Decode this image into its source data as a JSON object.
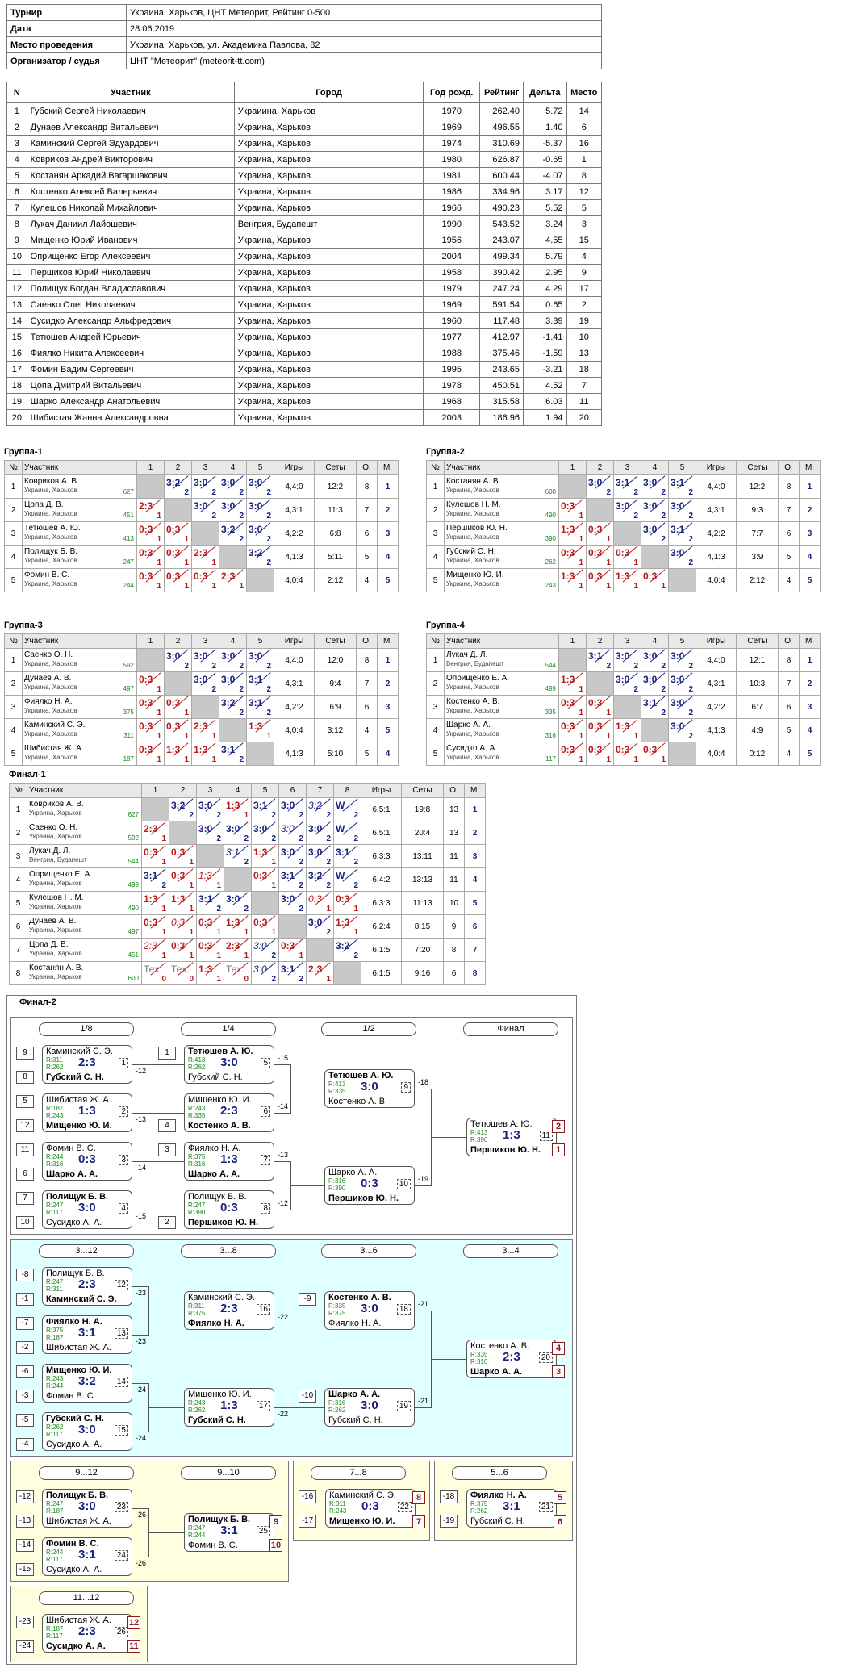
{
  "info": [
    [
      "Турнир",
      "Украина, Харьков, ЦНТ Метеорит, Рейтинг 0-500"
    ],
    [
      "Дата",
      "28.06.2019"
    ],
    [
      "Место проведения",
      "Украина, Харьков, ул. Академика Павлова, 82"
    ],
    [
      "Организатор / судья",
      "ЦНТ \"Метеорит\" (meteorit-tt.com)"
    ]
  ],
  "plist_headers": [
    "N",
    "Участник",
    "Город",
    "Год рожд.",
    "Рейтинг",
    "Дельта",
    "Место"
  ],
  "players": [
    [
      "1",
      "Губский Сергей Николаевич",
      "Украиина, Харьков",
      "1970",
      "262.40",
      "5.72",
      "14"
    ],
    [
      "2",
      "Дунаев Александр Витальевич",
      "Украина, Харьков",
      "1969",
      "496.55",
      "1.40",
      "6"
    ],
    [
      "3",
      "Каминский Сергей Эдуардович",
      "Украина, Харьков",
      "1974",
      "310.69",
      "-5.37",
      "16"
    ],
    [
      "4",
      "Ковриков Андрей Викторович",
      "Украина, Харьков",
      "1980",
      "626.87",
      "-0.65",
      "1"
    ],
    [
      "5",
      "Костанян Аркадий Вагаршакович",
      "Украина, Харьков",
      "1981",
      "600.44",
      "-4.07",
      "8"
    ],
    [
      "6",
      "Костенко Алексей Валерьевич",
      "Украина, Харьков",
      "1986",
      "334.96",
      "3.17",
      "12"
    ],
    [
      "7",
      "Кулешов Николай Михайлович",
      "Украина, Харьков",
      "1966",
      "490.23",
      "5.52",
      "5"
    ],
    [
      "8",
      "Лукач Даниил Лайошевич",
      "Венгрия, Будапешт",
      "1990",
      "543.52",
      "3.24",
      "3"
    ],
    [
      "9",
      "Мищенко Юрий Иванович",
      "Украина, Харьков",
      "1956",
      "243.07",
      "4.55",
      "15"
    ],
    [
      "10",
      "Оприщенко Егор Алексеевич",
      "Украина, Харьков",
      "2004",
      "499.34",
      "5.79",
      "4"
    ],
    [
      "11",
      "Першиков Юрий Николаевич",
      "Украина, Харьков",
      "1958",
      "390.42",
      "2.95",
      "9"
    ],
    [
      "12",
      "Полищук Богдан Владиславович",
      "Украина, Харьков",
      "1979",
      "247.24",
      "4.29",
      "17"
    ],
    [
      "13",
      "Саенко Олег Николаевич",
      "Украина, Харьков",
      "1969",
      "591.54",
      "0.65",
      "2"
    ],
    [
      "14",
      "Сусидко Александр Альфредович",
      "Украина, Харьков",
      "1960",
      "117.48",
      "3.39",
      "19"
    ],
    [
      "15",
      "Тетюшев Андрей Юрьевич",
      "Украина, Харьков",
      "1977",
      "412.97",
      "-1.41",
      "10"
    ],
    [
      "16",
      "Фиялко Никита Алексеевич",
      "Украина, Харьков",
      "1988",
      "375.46",
      "-1.59",
      "13"
    ],
    [
      "17",
      "Фомин Вадим Сергеевич",
      "Украина, Харьков",
      "1995",
      "243.65",
      "-3.21",
      "18"
    ],
    [
      "18",
      "Цопа Дмитрий Витальевич",
      "Украина, Харьков",
      "1978",
      "450.51",
      "4.52",
      "7"
    ],
    [
      "19",
      "Шарко Александр Анатольевич",
      "Украина, Харьков",
      "1968",
      "315.58",
      "6.03",
      "11"
    ],
    [
      "20",
      "Шибистая Жанна Александровна",
      "Украина, Харьков",
      "2003",
      "186.96",
      "1.94",
      "20"
    ]
  ],
  "group_headers": [
    "№",
    "Участник",
    "Игры",
    "Сеты",
    "О.",
    "М."
  ],
  "groups": [
    {
      "title": "Группа-1",
      "rows": [
        {
          "n": "1",
          "name": "Ковриков А. В.",
          "city": "Украина, Харьков",
          "r": "627",
          "cells": [
            "X",
            "3:2|2|w",
            "3:0|2|w",
            "3:0|2|w",
            "3:0|2|w"
          ],
          "g": "4,4:0",
          "s": "12:2",
          "o": "8",
          "m": "1"
        },
        {
          "n": "2",
          "name": "Цопа Д. В.",
          "city": "Украина, Харьков",
          "r": "451",
          "cells": [
            "2:3|1|l",
            "X",
            "3:0|2|w",
            "3:0|2|w",
            "3:0|2|w"
          ],
          "g": "4,3:1",
          "s": "11:3",
          "o": "7",
          "m": "2"
        },
        {
          "n": "3",
          "name": "Тетюшев А. Ю.",
          "city": "Украина, Харьков",
          "r": "413",
          "cells": [
            "0:3|1|l",
            "0:3|1|l",
            "X",
            "3:2|2|w",
            "3:0|2|w"
          ],
          "g": "4,2:2",
          "s": "6:8",
          "o": "6",
          "m": "3"
        },
        {
          "n": "4",
          "name": "Полищук Б. В.",
          "city": "Украина, Харьков",
          "r": "247",
          "cells": [
            "0:3|1|l",
            "0:3|1|l",
            "2:3|1|l",
            "X",
            "3:2|2|w"
          ],
          "g": "4,1:3",
          "s": "5:11",
          "o": "5",
          "m": "4"
        },
        {
          "n": "5",
          "name": "Фомин В. С.",
          "city": "Украина, Харьков",
          "r": "244",
          "cells": [
            "0:3|1|l",
            "0:3|1|l",
            "0:3|1|l",
            "2:3|1|l",
            "X"
          ],
          "g": "4,0:4",
          "s": "2:12",
          "o": "4",
          "m": "5"
        }
      ]
    },
    {
      "title": "Группа-2",
      "rows": [
        {
          "n": "1",
          "name": "Костанян А. В.",
          "city": "Украина, Харьков",
          "r": "600",
          "cells": [
            "X",
            "3:0|2|w",
            "3:1|2|w",
            "3:0|2|w",
            "3:1|2|w"
          ],
          "g": "4,4:0",
          "s": "12:2",
          "o": "8",
          "m": "1"
        },
        {
          "n": "2",
          "name": "Кулешов Н. М.",
          "city": "Украина, Харьков",
          "r": "490",
          "cells": [
            "0:3|1|l",
            "X",
            "3:0|2|w",
            "3:0|2|w",
            "3:0|2|w"
          ],
          "g": "4,3:1",
          "s": "9:3",
          "o": "7",
          "m": "2"
        },
        {
          "n": "3",
          "name": "Першиков Ю. Н.",
          "city": "Украина, Харьков",
          "r": "390",
          "cells": [
            "1:3|1|l",
            "0:3|1|l",
            "X",
            "3:0|2|w",
            "3:1|2|w"
          ],
          "g": "4,2:2",
          "s": "7:7",
          "o": "6",
          "m": "3"
        },
        {
          "n": "4",
          "name": "Губский С. Н.",
          "city": "Украина, Харьков",
          "r": "262",
          "cells": [
            "0:3|1|l",
            "0:3|1|l",
            "0:3|1|l",
            "X",
            "3:0|2|w"
          ],
          "g": "4,1:3",
          "s": "3:9",
          "o": "5",
          "m": "4"
        },
        {
          "n": "5",
          "name": "Мищенко Ю. И.",
          "city": "Украина, Харьков",
          "r": "243",
          "cells": [
            "1:3|1|l",
            "0:3|1|l",
            "1:3|1|l",
            "0:3|1|l",
            "X"
          ],
          "g": "4,0:4",
          "s": "2:12",
          "o": "4",
          "m": "5"
        }
      ]
    },
    {
      "title": "Группа-3",
      "rows": [
        {
          "n": "1",
          "name": "Саенко О. Н.",
          "city": "Украина, Харьков",
          "r": "592",
          "cells": [
            "X",
            "3:0|2|w",
            "3:0|2|w",
            "3:0|2|w",
            "3:0|2|w"
          ],
          "g": "4,4:0",
          "s": "12:0",
          "o": "8",
          "m": "1"
        },
        {
          "n": "2",
          "name": "Дунаев А. В.",
          "city": "Украина, Харьков",
          "r": "497",
          "cells": [
            "0:3|1|l",
            "X",
            "3:0|2|w",
            "3:0|2|w",
            "3:1|2|w"
          ],
          "g": "4,3:1",
          "s": "9:4",
          "o": "7",
          "m": "2"
        },
        {
          "n": "3",
          "name": "Фиялко Н. А.",
          "city": "Украина, Харьков",
          "r": "375",
          "cells": [
            "0:3|1|l",
            "0:3|1|l",
            "X",
            "3:2|2|w",
            "3:1|2|w"
          ],
          "g": "4,2:2",
          "s": "6:9",
          "o": "6",
          "m": "3"
        },
        {
          "n": "4",
          "name": "Каминский С. Э.",
          "city": "Украина, Харьков",
          "r": "311",
          "cells": [
            "0:3|1|l",
            "0:3|1|l",
            "2:3|1|l",
            "X",
            "1:3|1|l"
          ],
          "g": "4,0:4",
          "s": "3:12",
          "o": "4",
          "m": "5"
        },
        {
          "n": "5",
          "name": "Шибистая Ж. А.",
          "city": "Украина, Харьков",
          "r": "187",
          "cells": [
            "0:3|1|l",
            "1:3|1|l",
            "1:3|1|l",
            "3:1|2|w",
            "X"
          ],
          "g": "4,1:3",
          "s": "5:10",
          "o": "5",
          "m": "4"
        }
      ]
    },
    {
      "title": "Группа-4",
      "rows": [
        {
          "n": "1",
          "name": "Лукач Д. Л.",
          "city": "Венгрия, Будапешт",
          "r": "544",
          "cells": [
            "X",
            "3:1|2|w",
            "3:0|2|w",
            "3:0|2|w",
            "3:0|2|w"
          ],
          "g": "4,4:0",
          "s": "12:1",
          "o": "8",
          "m": "1"
        },
        {
          "n": "2",
          "name": "Оприщенко Е. А.",
          "city": "Украина, Харьков",
          "r": "499",
          "cells": [
            "1:3|1|l",
            "X",
            "3:0|2|w",
            "3:0|2|w",
            "3:0|2|w"
          ],
          "g": "4,3:1",
          "s": "10:3",
          "o": "7",
          "m": "2"
        },
        {
          "n": "3",
          "name": "Костенко А. В.",
          "city": "Украина, Харьков",
          "r": "335",
          "cells": [
            "0:3|1|l",
            "0:3|1|l",
            "X",
            "3:1|2|w",
            "3:0|2|w"
          ],
          "g": "4,2:2",
          "s": "6:7",
          "o": "6",
          "m": "3"
        },
        {
          "n": "4",
          "name": "Шарко А. А.",
          "city": "Украина, Харьков",
          "r": "316",
          "cells": [
            "0:3|1|l",
            "0:3|1|l",
            "1:3|1|l",
            "X",
            "3:0|2|w"
          ],
          "g": "4,1:3",
          "s": "4:9",
          "o": "5",
          "m": "4"
        },
        {
          "n": "5",
          "name": "Сусидко А. А.",
          "city": "Украина, Харьков",
          "r": "117",
          "cells": [
            "0:3|1|l",
            "0:3|1|l",
            "0:3|1|l",
            "0:3|1|l",
            "X"
          ],
          "g": "4,0:4",
          "s": "0:12",
          "o": "4",
          "m": "5"
        }
      ]
    }
  ],
  "final1": {
    "title": "Финал-1",
    "rows": [
      {
        "n": "1",
        "name": "Ковриков А. В.",
        "city": "Украина, Харьков",
        "r": "627",
        "cells": [
          "X",
          "3:2|2|w",
          "3:0|2|w",
          "1:3|1|l",
          "3:1|2|w",
          "3:0|2|w",
          "3:2|2|wi",
          "W|2|w"
        ],
        "g": "6,5:1",
        "s": "19:8",
        "o": "13",
        "m": "1"
      },
      {
        "n": "2",
        "name": "Саенко О. Н.",
        "city": "Украина, Харьков",
        "r": "592",
        "cells": [
          "2:3|1|l",
          "X",
          "3:0|2|w",
          "3:0|2|w",
          "3:0|2|w",
          "3:0|2|wi",
          "3:0|2|w",
          "W|2|w"
        ],
        "g": "6,5:1",
        "s": "20:4",
        "o": "13",
        "m": "2"
      },
      {
        "n": "3",
        "name": "Лукач Д. Л.",
        "city": "Венгрия, Будапешт",
        "r": "544",
        "cells": [
          "0:3|1|l",
          "0:3|1|l",
          "X",
          "3:1|2|wi",
          "1:3|1|l",
          "3:0|2|w",
          "3:0|2|w",
          "3:1|2|w"
        ],
        "g": "6,3:3",
        "s": "13:11",
        "o": "11",
        "m": "3"
      },
      {
        "n": "4",
        "name": "Оприщенко Е. А.",
        "city": "Украина, Харьков",
        "r": "499",
        "cells": [
          "3:1|2|w",
          "0:3|1|l",
          "1:3|1|li",
          "X",
          "0:3|1|l",
          "3:1|2|w",
          "3:2|2|w",
          "W|2|w"
        ],
        "g": "6,4:2",
        "s": "13:13",
        "o": "11",
        "m": "4"
      },
      {
        "n": "5",
        "name": "Кулешов Н. М.",
        "city": "Украина, Харьков",
        "r": "490",
        "cells": [
          "1:3|1|l",
          "1:3|1|l",
          "3:1|2|w",
          "3:0|2|w",
          "X",
          "3:0|2|w",
          "0:3|1|li",
          "0:3|1|l"
        ],
        "g": "6,3:3",
        "s": "11:13",
        "o": "10",
        "m": "5"
      },
      {
        "n": "6",
        "name": "Дунаев А. В.",
        "city": "Украина, Харьков",
        "r": "497",
        "cells": [
          "0:3|1|l",
          "0:3|1|li",
          "0:3|1|l",
          "1:3|1|l",
          "0:3|1|l",
          "X",
          "3:0|2|w",
          "1:3|1|l"
        ],
        "g": "6,2:4",
        "s": "8:15",
        "o": "9",
        "m": "6"
      },
      {
        "n": "7",
        "name": "Цопа Д. В.",
        "city": "Украина, Харьков",
        "r": "451",
        "cells": [
          "2:3|1|li",
          "0:3|1|l",
          "0:3|1|l",
          "2:3|1|l",
          "3:0|2|wi",
          "0:3|1|l",
          "X",
          "3:2|2|w"
        ],
        "g": "6,1:5",
        "s": "7:20",
        "o": "8",
        "m": "7"
      },
      {
        "n": "8",
        "name": "Костанян А. В.",
        "city": "Украина, Харьков",
        "r": "600",
        "cells": [
          "Тех.|0|t",
          "Тех.|0|t",
          "1:3|1|l",
          "Тех.|0|t",
          "3:0|2|wi",
          "3:1|2|w",
          "2:3|1|l",
          "X"
        ],
        "g": "6,1:5",
        "s": "9:16",
        "o": "6",
        "m": "8"
      }
    ]
  },
  "final2_title": "Финал-2",
  "rounds": {
    "r18": "1/8",
    "r14": "1/4",
    "r12": "1/2",
    "fin": "Финал",
    "c312": "3...12",
    "c38": "3...8",
    "c36": "3...6",
    "c34": "3...4",
    "c912": "9...12",
    "c910": "9...10",
    "c78": "7...8",
    "c56": "5...6",
    "c1112": "11...12"
  },
  "matches": [
    {
      "id": "m1",
      "n1": "Каминский С. Э.",
      "r1": "R:311",
      "n2": "Губский С. Н.",
      "r2": "R:262",
      "sc": "2:3",
      "mn": "1",
      "w": 2
    },
    {
      "id": "m2",
      "n1": "Шибистая Ж. А.",
      "r1": "R:187",
      "n2": "Мищенко Ю. И.",
      "r2": "R:243",
      "sc": "1:3",
      "mn": "2",
      "w": 2
    },
    {
      "id": "m3",
      "n1": "Фомин В. С.",
      "r1": "R:244",
      "n2": "Шарко А. А.",
      "r2": "R:316",
      "sc": "0:3",
      "mn": "3",
      "w": 2
    },
    {
      "id": "m4",
      "n1": "Полищук Б. В.",
      "r1": "R:247",
      "n2": "Сусидко А. А.",
      "r2": "R:117",
      "sc": "3:0",
      "mn": "4",
      "w": 1
    },
    {
      "id": "m5",
      "n1": "Тетюшев А. Ю.",
      "r1": "R:413",
      "n2": "Губский С. Н.",
      "r2": "R:262",
      "sc": "3:0",
      "mn": "5",
      "w": 1
    },
    {
      "id": "m6",
      "n1": "Мищенко Ю. И.",
      "r1": "R:243",
      "n2": "Костенко А. В.",
      "r2": "R:335",
      "sc": "2:3",
      "mn": "6",
      "w": 2
    },
    {
      "id": "m7",
      "n1": "Фиялко Н. А.",
      "r1": "R:375",
      "n2": "Шарко А. А.",
      "r2": "R:316",
      "sc": "1:3",
      "mn": "7",
      "w": 2
    },
    {
      "id": "m8",
      "n1": "Полищук Б. В.",
      "r1": "R:247",
      "n2": "Першиков Ю. Н.",
      "r2": "R:390",
      "sc": "0:3",
      "mn": "8",
      "w": 2
    },
    {
      "id": "m9",
      "n1": "Тетюшев А. Ю.",
      "r1": "R:413",
      "n2": "Костенко А. В.",
      "r2": "R:335",
      "sc": "3:0",
      "mn": "9",
      "w": 1
    },
    {
      "id": "m10",
      "n1": "Шарко А. А.",
      "r1": "R:316",
      "n2": "Першиков Ю. Н.",
      "r2": "R:390",
      "sc": "0:3",
      "mn": "10",
      "w": 2
    },
    {
      "id": "m11",
      "n1": "Тетюшев А. Ю.",
      "r1": "R:413",
      "n2": "Першиков Ю. Н.",
      "r2": "R:390",
      "sc": "1:3",
      "mn": "11",
      "w": 2
    },
    {
      "id": "m12",
      "n1": "Полищук Б. В.",
      "r1": "R:247",
      "n2": "Каминский С. Э.",
      "r2": "R:311",
      "sc": "2:3",
      "mn": "12",
      "w": 2
    },
    {
      "id": "m13",
      "n1": "Фиялко Н. А.",
      "r1": "R:375",
      "n2": "Шибистая Ж. А.",
      "r2": "R:187",
      "sc": "3:1",
      "mn": "13",
      "w": 1
    },
    {
      "id": "m14",
      "n1": "Мищенко Ю. И.",
      "r1": "R:243",
      "n2": "Фомин В. С.",
      "r2": "R:244",
      "sc": "3:2",
      "mn": "14",
      "w": 1
    },
    {
      "id": "m15",
      "n1": "Губский С. Н.",
      "r1": "R:262",
      "n2": "Сусидко А. А.",
      "r2": "R:117",
      "sc": "3:0",
      "mn": "15",
      "w": 1
    },
    {
      "id": "m16",
      "n1": "Каминский С. Э.",
      "r1": "R:311",
      "n2": "Фиялко Н. А.",
      "r2": "R:375",
      "sc": "2:3",
      "mn": "16",
      "w": 2
    },
    {
      "id": "m17",
      "n1": "Мищенко Ю. И.",
      "r1": "R:243",
      "n2": "Губский С. Н.",
      "r2": "R:262",
      "sc": "1:3",
      "mn": "17",
      "w": 2
    },
    {
      "id": "m18",
      "n1": "Костенко А. В.",
      "r1": "R:335",
      "n2": "Фиялко Н. А.",
      "r2": "R:375",
      "sc": "3:0",
      "mn": "18",
      "w": 1
    },
    {
      "id": "m19",
      "n1": "Шарко А. А.",
      "r1": "R:316",
      "n2": "Губский С. Н.",
      "r2": "R:262",
      "sc": "3:0",
      "mn": "19",
      "w": 1
    },
    {
      "id": "m20",
      "n1": "Костенко А. В.",
      "r1": "R:335",
      "n2": "Шарко А. А.",
      "r2": "R:316",
      "sc": "2:3",
      "mn": "20",
      "w": 2
    },
    {
      "id": "m21",
      "n1": "Фиялко Н. А.",
      "r1": "R:375",
      "n2": "Губский С. Н.",
      "r2": "R:262",
      "sc": "3:1",
      "mn": "21",
      "w": 1
    },
    {
      "id": "m22",
      "n1": "Каминский С. Э.",
      "r1": "R:311",
      "n2": "Мищенко Ю. И.",
      "r2": "R:243",
      "sc": "0:3",
      "mn": "22",
      "w": 2
    },
    {
      "id": "m23",
      "n1": "Полищук Б. В.",
      "r1": "R:247",
      "n2": "Шибистая Ж. А.",
      "r2": "R:187",
      "sc": "3:0",
      "mn": "23",
      "w": 1
    },
    {
      "id": "m24",
      "n1": "Фомин В. С.",
      "r1": "R:244",
      "n2": "Сусидко А. А.",
      "r2": "R:117",
      "sc": "3:1",
      "mn": "24",
      "w": 1
    },
    {
      "id": "m25",
      "n1": "Полищук Б. В.",
      "r1": "R:247",
      "n2": "Фомин В. С.",
      "r2": "R:244",
      "sc": "3:1",
      "mn": "25",
      "w": 1
    },
    {
      "id": "m26",
      "n1": "Шибистая Ж. А.",
      "r1": "R:187",
      "n2": "Сусидко А. А.",
      "r2": "R:117",
      "sc": "2:3",
      "mn": "26",
      "w": 2
    }
  ],
  "seeds": [
    "9",
    "8",
    "5",
    "12",
    "11",
    "6",
    "7",
    "10",
    "1",
    "4",
    "3",
    "2",
    "-8",
    "-1",
    "-7",
    "-2",
    "-6",
    "-3",
    "-5",
    "-4",
    "-9",
    "-10",
    "-12",
    "-13",
    "-14",
    "-15",
    "-16",
    "-17",
    "-18",
    "-19",
    "-23",
    "-24"
  ],
  "labels": [
    "-12",
    "-13",
    "-14",
    "-15",
    "-15",
    "-14",
    "-13",
    "-12",
    "-18",
    "-19",
    "-23",
    "-23",
    "-24",
    "-24",
    "-22",
    "-22",
    "-21",
    "-21",
    "-26",
    "-26"
  ],
  "places": [
    "2",
    "1",
    "4",
    "3",
    "9",
    "10",
    "8",
    "7",
    "5",
    "6",
    "12",
    "11"
  ]
}
